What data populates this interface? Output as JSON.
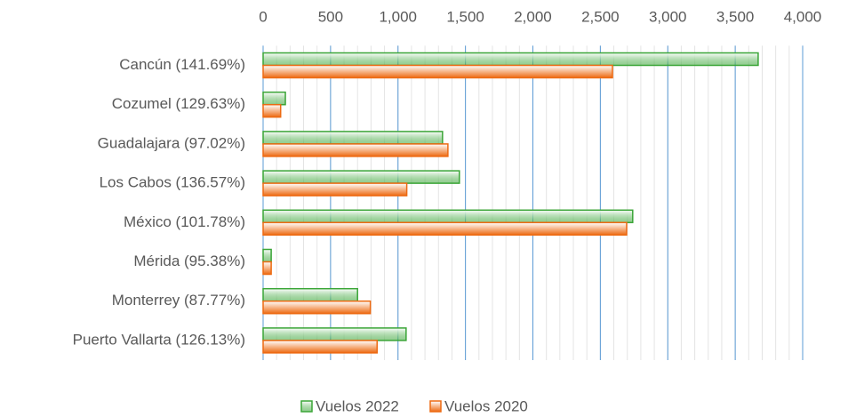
{
  "chart_data": {
    "type": "hbar",
    "categories": [
      "Cancún (141.69%)",
      "Cozumel (129.63%)",
      "Guadalajara (97.02%)",
      "Los Cabos (136.57%)",
      "México (101.78%)",
      "Mérida (95.38%)",
      "Monterrey (87.77%)",
      "Puerto Vallarta (126.13%)"
    ],
    "series": [
      {
        "name": "Vuelos 2022",
        "color": "#3aa537",
        "values": [
          3670,
          165,
          1330,
          1455,
          2740,
          60,
          700,
          1060
        ]
      },
      {
        "name": "Vuelos 2020",
        "color": "#ed6a12",
        "values": [
          2590,
          130,
          1370,
          1065,
          2695,
          60,
          795,
          845
        ]
      }
    ],
    "xlim": [
      0,
      4000
    ],
    "xticks": [
      0,
      500,
      {
        "value": 1000,
        "label": "1,000"
      },
      {
        "value": 1500,
        "label": "1,500"
      },
      {
        "value": 2000,
        "label": "2,000"
      },
      {
        "value": 2500,
        "label": "2,500"
      },
      {
        "value": 3000,
        "label": "3,000"
      },
      {
        "value": 3500,
        "label": "3,500"
      },
      {
        "value": 4000,
        "label": "4,000"
      }
    ],
    "grid": true,
    "minor_grid_step": 100,
    "legend": "bottom"
  }
}
